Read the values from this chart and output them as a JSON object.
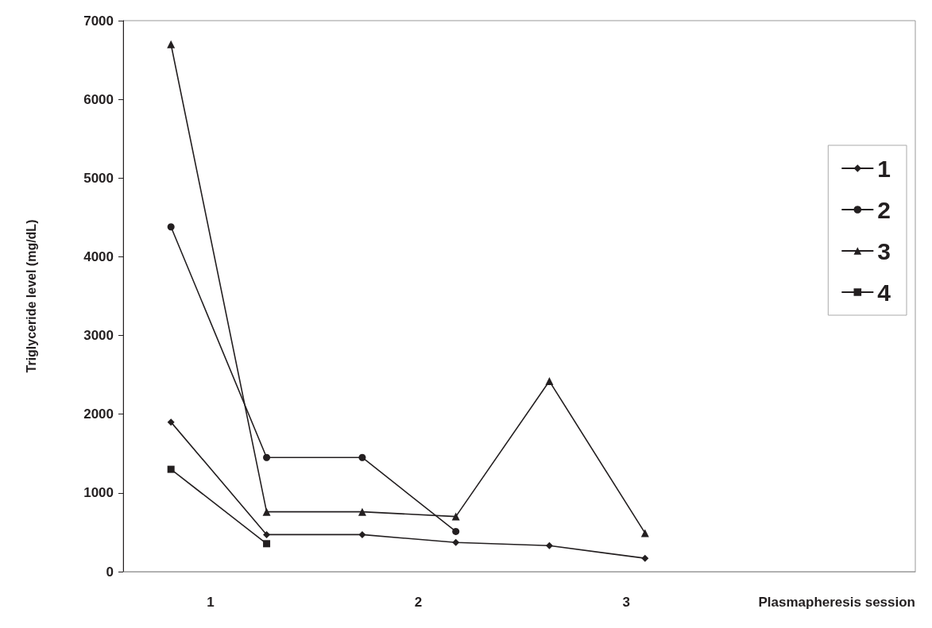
{
  "chart_data": {
    "type": "line",
    "xlabel": "Plasmapheresis session",
    "ylabel": "Triglyceride level (mg/dL)",
    "xlim": [
      0.58,
      4.39
    ],
    "xticks": [
      1,
      2,
      3
    ],
    "ylim": [
      0,
      7000
    ],
    "yticks": [
      0,
      1000,
      2000,
      3000,
      4000,
      5000,
      6000,
      7000
    ],
    "grid": false,
    "legend": "right",
    "series": [
      {
        "name": "1",
        "color": "#231f20",
        "marker": "diamond",
        "x": [
          0.81,
          1.27,
          1.73,
          2.18,
          2.63,
          3.09
        ],
        "values": [
          1900,
          470,
          470,
          370,
          330,
          170
        ]
      },
      {
        "name": "2",
        "color": "#231f20",
        "marker": "circle",
        "x": [
          0.81,
          1.27,
          1.73,
          2.18
        ],
        "values": [
          4380,
          1450,
          1450,
          510
        ]
      },
      {
        "name": "3",
        "color": "#231f20",
        "marker": "triangle",
        "x": [
          0.81,
          1.27,
          1.73,
          2.18,
          2.63,
          3.09
        ],
        "values": [
          6700,
          760,
          760,
          700,
          2420,
          490
        ]
      },
      {
        "name": "4",
        "color": "#231f20",
        "marker": "square",
        "x": [
          0.81,
          1.27
        ],
        "values": [
          1300,
          355
        ]
      }
    ]
  }
}
